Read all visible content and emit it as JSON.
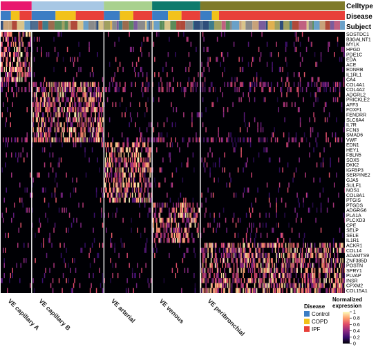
{
  "chart_data": {
    "type": "heatmap",
    "annotation_rows": [
      "Celltype",
      "Disease",
      "Subject"
    ],
    "celltypes": [
      {
        "name": "VE capillary A",
        "fraction": 0.09,
        "color": "#e8196e"
      },
      {
        "name": "VE capillary B",
        "fraction": 0.21,
        "color": "#a7c7e4"
      },
      {
        "name": "VE arterial",
        "fraction": 0.14,
        "color": "#a9d18e"
      },
      {
        "name": "VE venous",
        "fraction": 0.14,
        "color": "#0e7a6c"
      },
      {
        "name": "VE peribronchial",
        "fraction": 0.42,
        "color": "#7f7a2a"
      }
    ],
    "disease": {
      "title": "Disease",
      "levels": [
        {
          "name": "Control",
          "color": "#3b7dc4"
        },
        {
          "name": "COPD",
          "color": "#f2c21b"
        },
        {
          "name": "IPF",
          "color": "#e8403a"
        }
      ]
    },
    "genes": [
      "SOSTDC1",
      "B3GALNT1",
      "MYLK",
      "HPGD",
      "PDE1C",
      "EDA",
      "ACE",
      "EDNRB",
      "IL1RL1",
      "CA4",
      "COL4A1",
      "COL4A2",
      "ADGRL2",
      "PRICKLE2",
      "AFF3",
      "FOXF1",
      "FENDRR",
      "SLC6A4",
      "IL7R",
      "FCN3",
      "SMAD6",
      "VWF",
      "EDN1",
      "HEY1",
      "FBLN5",
      "SOX5",
      "DKK2",
      "IGFBP3",
      "SERPINE2",
      "GJA5",
      "SULF1",
      "NOS1",
      "COL8A1",
      "PTGIS",
      "PTGDS",
      "ADGRG6",
      "PLA1A",
      "PLCXD3",
      "CPE",
      "SELP",
      "SELE",
      "IL1R1",
      "ACKR1",
      "COL14",
      "ADAMTS9",
      "ZNF385D",
      "POSTN",
      "SPRY1",
      "PLVAP",
      "INSR",
      "CPXM2",
      "COL15A1"
    ],
    "gene_groups": [
      {
        "celltype": "VE capillary A",
        "genes": [
          "SOSTDC1",
          "B3GALNT1",
          "MYLK",
          "HPGD",
          "PDE1C",
          "EDA",
          "ACE",
          "EDNRB",
          "IL1RL1",
          "CA4"
        ]
      },
      {
        "celltype": "VE capillary B",
        "genes": [
          "COL4A1",
          "COL4A2",
          "ADGRL2",
          "PRICKLE2",
          "AFF3",
          "FOXF1",
          "FENDRR",
          "SLC6A4",
          "IL7R",
          "FCN3",
          "SMAD6",
          "VWF"
        ]
      },
      {
        "celltype": "VE arterial",
        "genes": [
          "EDN1",
          "HEY1",
          "FBLN5",
          "SOX5",
          "DKK2",
          "IGFBP3",
          "SERPINE2",
          "GJA5",
          "SULF1",
          "NOS1",
          "COL8A1",
          "PTGIS"
        ]
      },
      {
        "celltype": "VE venous",
        "genes": [
          "PTGDS",
          "ADGRG6",
          "PLA1A",
          "PLCXD3",
          "CPE",
          "SELP",
          "SELE",
          "IL1R1"
        ]
      },
      {
        "celltype": "VE peribronchial",
        "genes": [
          "ACKR1",
          "COL14",
          "ADAMTS9",
          "ZNF385D",
          "POSTN",
          "SPRY1",
          "PLVAP",
          "INSR",
          "CPXM2",
          "COL15A1"
        ]
      }
    ],
    "colorbar": {
      "title_lines": [
        "Normalized",
        "expression"
      ],
      "ticks": [
        "1",
        "0.8",
        "0.6",
        "0.4",
        "0.2",
        "0"
      ],
      "range": [
        0,
        1
      ],
      "colors": [
        "#000004",
        "#3b0f70",
        "#8c2981",
        "#de4968",
        "#fe9f6d",
        "#fcfdbf"
      ]
    },
    "subject_colors": [
      "#4f6d8f",
      "#c8a27a",
      "#6aa0c8",
      "#2e4d7a",
      "#9c6b4e",
      "#d9c48a",
      "#5b8c5a",
      "#8a8a8a",
      "#b04a3a",
      "#3d7c8c",
      "#e0b050",
      "#7a5c9c",
      "#c06080",
      "#2a6a4a",
      "#a0a060"
    ]
  }
}
